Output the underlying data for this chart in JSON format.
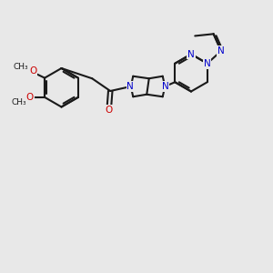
{
  "bg_color": "#e8e8e8",
  "bond_color": "#1a1a1a",
  "n_color": "#0000cc",
  "o_color": "#cc0000",
  "lw": 1.5,
  "figsize": [
    3.0,
    3.0
  ],
  "dpi": 100,
  "xlim": [
    -1,
    11
  ],
  "ylim": [
    -1,
    11
  ]
}
